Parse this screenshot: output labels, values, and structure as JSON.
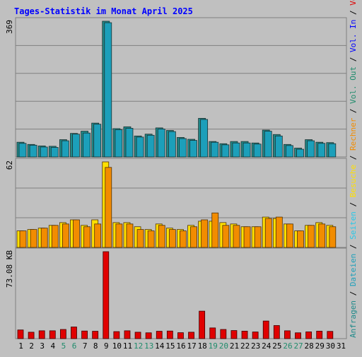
{
  "title": "Tages-Statistik im Monat April 2025",
  "colors": {
    "background": "#c0c0c0",
    "title": "#0000ff",
    "frame": "#808080",
    "grid": "#808080",
    "weekday_label": "#000000",
    "weekend_label": "#208c6c",
    "anfragen": "#208a8a",
    "dateien": "#1c9fba",
    "seiten": "#28c8e8",
    "besuche": "#ffe000",
    "rechner": "#f28c00",
    "volumen": "#e00000"
  },
  "chart_data": [
    {
      "type": "bar",
      "panel": "top",
      "ymax_label": "369",
      "ylim": [
        0,
        369
      ],
      "categories": [
        "1",
        "2",
        "3",
        "4",
        "5",
        "6",
        "7",
        "8",
        "9",
        "10",
        "11",
        "12",
        "13",
        "14",
        "15",
        "16",
        "17",
        "18",
        "19",
        "20",
        "21",
        "22",
        "23",
        "24",
        "25",
        "26",
        "27",
        "28",
        "29",
        "30",
        "31"
      ],
      "weekend_days": [
        "5",
        "6",
        "12",
        "13",
        "19",
        "20",
        "26",
        "27"
      ],
      "series": [
        {
          "name": "Anfragen",
          "color_key": "anfragen",
          "values": [
            40,
            34,
            30,
            29,
            47,
            64,
            70,
            92,
            369,
            77,
            82,
            57,
            62,
            79,
            72,
            53,
            48,
            105,
            42,
            36,
            42,
            42,
            38,
            73,
            61,
            34,
            24,
            47,
            40,
            39,
            0
          ]
        },
        {
          "name": "Dateien",
          "color_key": "dateien",
          "values": [
            37,
            32,
            27,
            26,
            44,
            62,
            65,
            89,
            365,
            74,
            78,
            54,
            59,
            76,
            69,
            50,
            45,
            102,
            40,
            33,
            38,
            38,
            35,
            70,
            57,
            31,
            21,
            44,
            37,
            36,
            0
          ]
        },
        {
          "name": "Seiten",
          "color_key": "seiten",
          "values": [
            0,
            0,
            0,
            0,
            0,
            0,
            0,
            0,
            0,
            0,
            0,
            0,
            0,
            0,
            0,
            0,
            0,
            0,
            0,
            0,
            0,
            0,
            0,
            0,
            0,
            0,
            0,
            0,
            0,
            0,
            0
          ]
        }
      ],
      "legend": [
        "Anfragen",
        "Dateien",
        "Seiten"
      ]
    },
    {
      "type": "bar",
      "panel": "middle",
      "ymax_label": "62",
      "ylim": [
        0,
        62
      ],
      "series": [
        {
          "name": "Besuche",
          "color_key": "besuche",
          "values": [
            12,
            13,
            14,
            16,
            18,
            20,
            16,
            20,
            62,
            18,
            18,
            15,
            13,
            17,
            14,
            13,
            16,
            19,
            19,
            18,
            17,
            15,
            15,
            22,
            21,
            17,
            12,
            16,
            18,
            16,
            0
          ]
        },
        {
          "name": "Rechner",
          "color_key": "rechner",
          "values": [
            12,
            13,
            14,
            16,
            17,
            20,
            15,
            17,
            58,
            17,
            17,
            13,
            12,
            16,
            13,
            12,
            15,
            20,
            25,
            16,
            16,
            15,
            15,
            21,
            22,
            17,
            12,
            16,
            17,
            15,
            0
          ]
        }
      ],
      "legend": [
        "Besuche",
        "Rechner"
      ]
    },
    {
      "type": "bar",
      "panel": "bottom",
      "ymax_label": "73.08 KB",
      "ylim": [
        0,
        73.08
      ],
      "series": [
        {
          "name": "Volumen",
          "color_key": "volumen",
          "values": [
            7.3,
            5.4,
            6.6,
            6.6,
            7.7,
            9.8,
            6.4,
            6.2,
            73.08,
            5.9,
            6.6,
            5.4,
            4.9,
            6.2,
            6.4,
            5.0,
            5.4,
            23.1,
            9.0,
            7.7,
            6.8,
            6.3,
            5.6,
            14.8,
            11.0,
            6.6,
            4.9,
            5.7,
            6.3,
            6.1,
            0
          ]
        }
      ],
      "legend_right": [
        "Volumen",
        "Vol. In",
        "Vol. Out"
      ]
    }
  ],
  "legend_right_sequence": [
    {
      "text": "Anfragen",
      "color_key": "anfragen"
    },
    {
      "text": "Dateien",
      "color_key": "dateien"
    },
    {
      "text": "Seiten",
      "color_key": "seiten"
    },
    {
      "text": "Besuche",
      "color_key": "besuche"
    },
    {
      "text": "Rechner",
      "color_key": "rechner"
    },
    {
      "text": "Vol. Out",
      "color_key": "weekend_label"
    },
    {
      "text": "Vol. In",
      "color_key": "title"
    },
    {
      "text": "Volumen",
      "color_key": "volumen"
    }
  ],
  "legend_separator": " / "
}
